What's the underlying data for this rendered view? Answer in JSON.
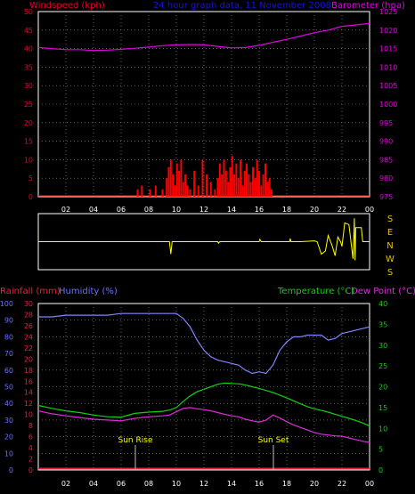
{
  "colors": {
    "background": "#000000",
    "frame": "#ffffff",
    "grid": "#9a9a9a",
    "wind_title": "#e8002a",
    "header": "#1515d9",
    "baro": "#e100e1",
    "wind": "#ff0000",
    "dir": "#ffff00",
    "dir_label": "#e6c200",
    "rain": "#ee1e3a",
    "humidity_title": "#6870ff",
    "humidity": "#7f86ff",
    "temp": "#13cf13",
    "dew": "#dd2cdd",
    "axis_text": "#ffffff"
  },
  "header": {
    "title": "24 hour graph data, 11 November 2008"
  },
  "wind_panel": {
    "left_title": "Windspeed (kph)",
    "right_title": "Barometer (hpa)",
    "left_ticks": [
      "0",
      "5",
      "10",
      "15",
      "20",
      "25",
      "30",
      "35",
      "40",
      "45",
      "50"
    ],
    "right_ticks": [
      "975",
      "980",
      "985",
      "990",
      "995",
      "1000",
      "1005",
      "1010",
      "1015",
      "1020",
      "1025"
    ]
  },
  "direction_panel": {
    "labels": [
      "S",
      "E",
      "N",
      "W",
      "S"
    ]
  },
  "lower_panel": {
    "rain_title": "Rainfall (mm)",
    "humidity_title": "Humidity (%)",
    "temp_title": "Temperature (°C)",
    "dew_title": "Dew Point (°C)",
    "humidity_ticks": [
      "0",
      "10",
      "20",
      "30",
      "40",
      "50",
      "60",
      "70",
      "80",
      "90",
      "100"
    ],
    "rain_ticks": [
      "0",
      "2",
      "4",
      "6",
      "8",
      "10",
      "12",
      "14",
      "16",
      "18",
      "20",
      "22",
      "24",
      "26",
      "28",
      "30"
    ],
    "temp_ticks": [
      "0",
      "5",
      "10",
      "15",
      "20",
      "25",
      "30",
      "35",
      "40"
    ],
    "sunrise_label": "Sun Rise",
    "sunset_label": "Sun Set"
  },
  "x_axis_ticks": [
    "02",
    "04",
    "06",
    "08",
    "10",
    "12",
    "14",
    "16",
    "18",
    "20",
    "22",
    "00"
  ],
  "chart_data": [
    {
      "type": "line",
      "name": "wind and barometer",
      "x_unit": "hour",
      "x_range": [
        0,
        24
      ],
      "ylim_left": [
        0,
        50
      ],
      "ylim_right": [
        975,
        1025
      ],
      "series": [
        {
          "name": "Barometer (hpa)",
          "axis": "right",
          "x": [
            0,
            1,
            2,
            3,
            4,
            5,
            6,
            7,
            8,
            9,
            10,
            11,
            12,
            13,
            14,
            15,
            16,
            17,
            18,
            19,
            20,
            21,
            22,
            23,
            24
          ],
          "values": [
            1015.3,
            1015.0,
            1014.7,
            1014.7,
            1014.5,
            1014.6,
            1014.8,
            1015.1,
            1015.4,
            1015.8,
            1016.0,
            1016.1,
            1016.0,
            1015.6,
            1015.2,
            1015.3,
            1015.9,
            1016.7,
            1017.5,
            1018.4,
            1019.3,
            1020.0,
            1021.0,
            1021.4,
            1021.8
          ]
        },
        {
          "name": "Windspeed (kph)",
          "axis": "left",
          "style": "bars",
          "x": [
            7.2,
            7.5,
            8.1,
            8.5,
            9.0,
            9.3,
            9.45,
            9.6,
            9.75,
            9.9,
            10.05,
            10.2,
            10.35,
            10.5,
            10.65,
            10.8,
            11.0,
            11.3,
            11.6,
            11.9,
            12.2,
            12.5,
            12.8,
            13.0,
            13.15,
            13.3,
            13.45,
            13.6,
            13.75,
            13.9,
            14.05,
            14.2,
            14.35,
            14.5,
            14.65,
            14.8,
            14.95,
            15.1,
            15.25,
            15.4,
            15.55,
            15.7,
            15.85,
            16.0,
            16.15,
            16.3,
            16.45,
            16.6,
            16.75,
            16.9
          ],
          "values": [
            2,
            3,
            2,
            3,
            2,
            5,
            8,
            10,
            6,
            3,
            9,
            7,
            10,
            4,
            6,
            3,
            2,
            7,
            3,
            10,
            6,
            4,
            2,
            5,
            9,
            6,
            10,
            7,
            4,
            8,
            11,
            6,
            9,
            5,
            10,
            3,
            7,
            9,
            6,
            4,
            8,
            5,
            10,
            7,
            3,
            6,
            9,
            4,
            5,
            2
          ]
        }
      ]
    },
    {
      "type": "line",
      "name": "wind direction",
      "x_unit": "hour",
      "x_range": [
        0,
        24
      ],
      "labels": [
        "S",
        "E",
        "N",
        "W",
        "S"
      ],
      "ylim": [
        0,
        360
      ],
      "series": [
        {
          "name": "direction",
          "x": [
            0,
            3,
            6,
            8.5,
            9.05,
            9.5,
            9.6,
            9.7,
            9.75,
            10.5,
            11.0,
            12.5,
            13.0,
            13.05,
            13.15,
            13.2,
            15.5,
            16.0,
            16.05,
            16.15,
            16.2,
            17.0,
            18.0,
            18.2,
            18.25,
            18.3,
            19.0,
            20.0,
            20.2,
            20.5,
            20.8,
            21.0,
            21.3,
            21.5,
            21.7,
            21.9,
            22.0,
            22.2,
            22.5,
            22.8,
            22.9,
            22.95,
            23.0,
            23.4,
            23.5,
            23.8,
            24.0
          ],
          "values": [
            180,
            180,
            180,
            180,
            180,
            180,
            100,
            180,
            180,
            180,
            180,
            180,
            180,
            170,
            180,
            180,
            180,
            180,
            195,
            180,
            180,
            180,
            180,
            180,
            200,
            180,
            180,
            185,
            180,
            100,
            120,
            220,
            150,
            90,
            210,
            180,
            150,
            300,
            290,
            70,
            330,
            60,
            270,
            270,
            180,
            180,
            180
          ]
        }
      ]
    },
    {
      "type": "line",
      "name": "rainfall humidity temperature dew point",
      "x_unit": "hour",
      "x_range": [
        0,
        24
      ],
      "ylim_left": [
        0,
        100
      ],
      "ylim_rain": [
        0,
        30
      ],
      "ylim_right": [
        0,
        40
      ],
      "series": [
        {
          "name": "Humidity (%)",
          "axis": "left",
          "x": [
            0,
            1,
            2,
            3,
            4,
            5,
            6,
            7,
            8,
            9,
            9.5,
            10,
            10.5,
            11,
            11.5,
            12,
            12.5,
            13,
            13.5,
            14,
            14.5,
            15,
            15.5,
            16,
            16.5,
            17,
            17.5,
            18,
            18.5,
            19,
            19.5,
            20,
            20.5,
            21,
            21.5,
            22,
            22.5,
            23,
            23.5,
            24
          ],
          "values": [
            92,
            92,
            93,
            93,
            93,
            93,
            94,
            94,
            94,
            94,
            94,
            94,
            91,
            86,
            78,
            72,
            68,
            66,
            65,
            64,
            63,
            60,
            58,
            59,
            58,
            63,
            72,
            77,
            80,
            80,
            81,
            81,
            81,
            78,
            79,
            82,
            83,
            84,
            85,
            86
          ]
        },
        {
          "name": "Rainfall (mm)",
          "axis": "rain",
          "x": [
            0,
            24
          ],
          "values": [
            0,
            0
          ]
        },
        {
          "name": "Temperature (°C)",
          "axis": "right",
          "x": [
            0,
            1,
            2,
            3,
            4,
            5,
            6,
            7,
            8,
            9,
            9.5,
            10,
            10.5,
            11,
            11.5,
            12,
            12.5,
            13,
            13.5,
            14,
            14.5,
            15,
            15.5,
            16,
            16.5,
            17,
            17.5,
            18,
            18.5,
            19,
            19.5,
            20,
            20.5,
            21,
            21.5,
            22,
            22.5,
            23,
            23.5,
            24
          ],
          "values": [
            15.5,
            14.8,
            14.2,
            13.8,
            13.2,
            12.8,
            12.7,
            13.6,
            13.9,
            14.1,
            14.4,
            15.0,
            16.5,
            17.8,
            18.8,
            19.4,
            20.0,
            20.6,
            20.9,
            20.8,
            20.7,
            20.4,
            20.0,
            19.6,
            19.1,
            18.6,
            18.0,
            17.3,
            16.6,
            15.9,
            15.2,
            14.7,
            14.3,
            13.9,
            13.4,
            12.9,
            12.4,
            11.9,
            11.3,
            10.6
          ]
        },
        {
          "name": "Dew Point (°C)",
          "axis": "right",
          "x": [
            0,
            1,
            2,
            3,
            4,
            5,
            6,
            7,
            8,
            9,
            9.5,
            10,
            10.5,
            11,
            11.5,
            12,
            12.5,
            13,
            13.5,
            14,
            14.5,
            15,
            15.5,
            16,
            16.5,
            17,
            17.5,
            18,
            18.5,
            19,
            19.5,
            20,
            20.5,
            21,
            21.5,
            22,
            22.5,
            23,
            23.5,
            24
          ],
          "values": [
            14.2,
            13.5,
            13.0,
            12.6,
            12.2,
            12.0,
            11.8,
            12.4,
            12.8,
            13.0,
            13.2,
            14.0,
            14.8,
            15.0,
            14.7,
            14.5,
            14.2,
            13.8,
            13.4,
            13.0,
            12.8,
            12.2,
            11.8,
            11.5,
            12.0,
            13.2,
            12.5,
            11.6,
            10.8,
            10.2,
            9.6,
            9.0,
            8.6,
            8.4,
            8.2,
            8.1,
            7.7,
            7.3,
            6.9,
            6.6
          ]
        }
      ]
    }
  ]
}
